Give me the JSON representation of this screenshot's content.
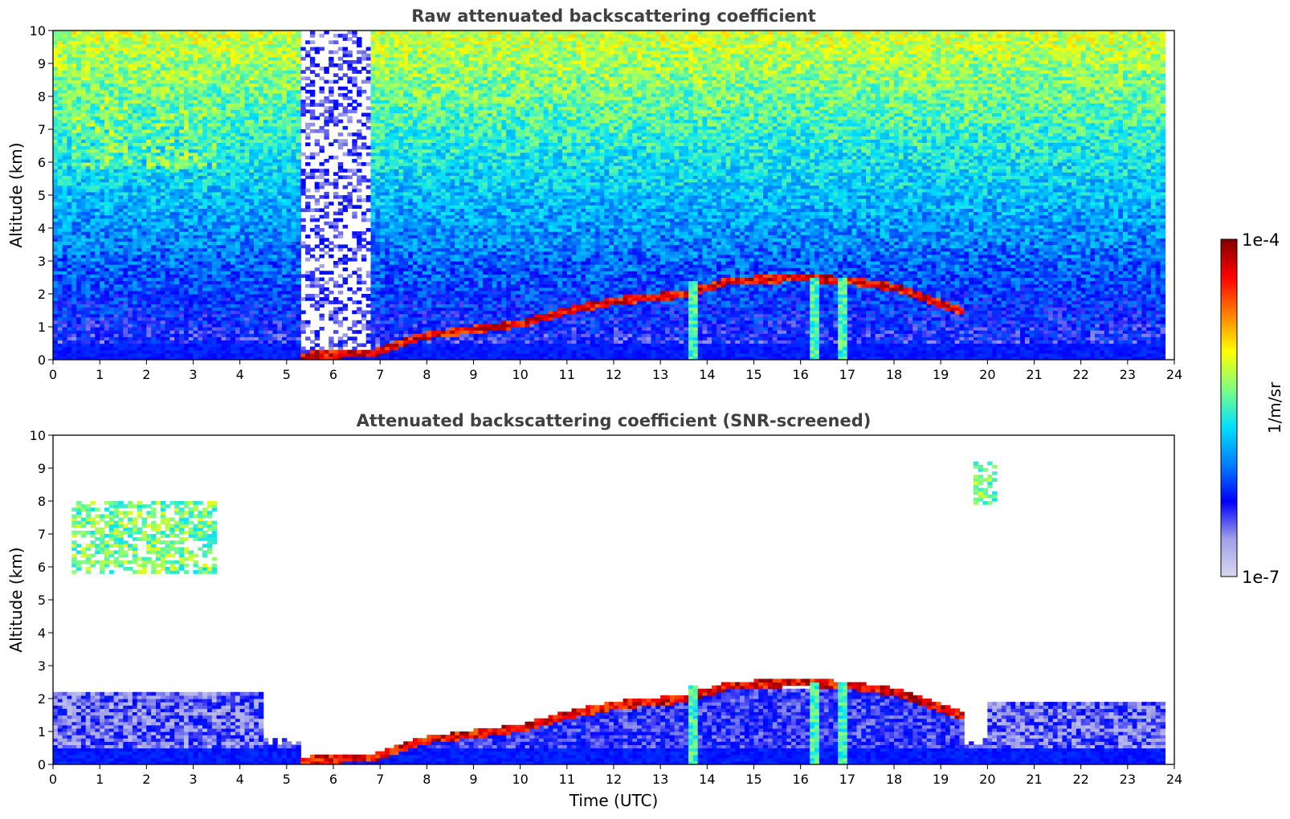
{
  "chart_data": [
    {
      "type": "heatmap",
      "id": "raw",
      "title": "Raw attenuated backscattering coefficient",
      "ylabel": "Altitude (km)",
      "xlabel": "",
      "xlim": [
        0,
        24
      ],
      "ylim": [
        0,
        10
      ],
      "x_ticks": [
        "0",
        "1",
        "2",
        "3",
        "4",
        "5",
        "6",
        "7",
        "8",
        "9",
        "10",
        "11",
        "12",
        "13",
        "14",
        "15",
        "16",
        "17",
        "18",
        "19",
        "20",
        "21",
        "22",
        "23",
        "24"
      ],
      "y_ticks": [
        "0",
        "1",
        "2",
        "3",
        "4",
        "5",
        "6",
        "7",
        "8",
        "9",
        "10"
      ],
      "data_end_time": 23.8,
      "features": [
        {
          "kind": "cirrus",
          "t0": 0.4,
          "t1": 3.5,
          "z0": 5.8,
          "z1": 8.0,
          "level": 0.55
        },
        {
          "kind": "cirrus",
          "t0": 19.7,
          "t1": 20.2,
          "z0": 7.9,
          "z1": 9.3,
          "level": 0.55
        },
        {
          "kind": "boundary_layer_top",
          "points": [
            [
              5.3,
              0.12
            ],
            [
              6.8,
              0.2
            ],
            [
              8,
              0.75
            ],
            [
              10,
              1.1
            ],
            [
              11,
              1.5
            ],
            [
              12,
              1.8
            ],
            [
              13.5,
              2.0
            ],
            [
              14.5,
              2.4
            ],
            [
              16,
              2.5
            ],
            [
              17,
              2.4
            ],
            [
              18,
              2.2
            ],
            [
              19.5,
              1.5
            ]
          ],
          "level": 0.95
        },
        {
          "kind": "precipitation_fall_streak",
          "t": 13.7,
          "z_top": 2.4,
          "level": 0.5
        },
        {
          "kind": "precipitation_fall_streak",
          "t": 16.3,
          "z_top": 2.5,
          "level": 0.5
        },
        {
          "kind": "precipitation_fall_streak",
          "t": 16.9,
          "z_top": 2.5,
          "level": 0.5
        },
        {
          "kind": "low_signal_gap",
          "t0": 5.3,
          "t1": 6.8
        }
      ]
    },
    {
      "type": "heatmap",
      "id": "snr",
      "title": "Attenuated backscattering coefficient (SNR-screened)",
      "ylabel": "Altitude (km)",
      "xlabel": "Time (UTC)",
      "xlim": [
        0,
        24
      ],
      "ylim": [
        0,
        10
      ],
      "x_ticks": [
        "0",
        "1",
        "2",
        "3",
        "4",
        "5",
        "6",
        "7",
        "8",
        "9",
        "10",
        "11",
        "12",
        "13",
        "14",
        "15",
        "16",
        "17",
        "18",
        "19",
        "20",
        "21",
        "22",
        "23",
        "24"
      ],
      "y_ticks": [
        "0",
        "1",
        "2",
        "3",
        "4",
        "5",
        "6",
        "7",
        "8",
        "9",
        "10"
      ],
      "data_end_time": 23.8,
      "features": [
        {
          "kind": "cirrus",
          "t0": 0.4,
          "t1": 3.5,
          "z0": 5.8,
          "z1": 8.0,
          "level": 0.55
        },
        {
          "kind": "cirrus",
          "t0": 19.7,
          "t1": 20.2,
          "z0": 7.9,
          "z1": 9.3,
          "level": 0.55
        },
        {
          "kind": "boundary_layer_top",
          "points": [
            [
              5.3,
              0.12
            ],
            [
              6.8,
              0.2
            ],
            [
              8,
              0.75
            ],
            [
              10,
              1.1
            ],
            [
              11,
              1.5
            ],
            [
              12,
              1.8
            ],
            [
              13.5,
              2.0
            ],
            [
              14.5,
              2.4
            ],
            [
              16,
              2.5
            ],
            [
              17,
              2.4
            ],
            [
              18,
              2.2
            ],
            [
              19.5,
              1.5
            ]
          ],
          "level": 0.95
        },
        {
          "kind": "precipitation_fall_streak",
          "t": 13.7,
          "z_top": 2.4,
          "level": 0.5
        },
        {
          "kind": "precipitation_fall_streak",
          "t": 16.3,
          "z_top": 2.5,
          "level": 0.5
        },
        {
          "kind": "precipitation_fall_streak",
          "t": 16.9,
          "z_top": 2.5,
          "level": 0.5
        }
      ]
    }
  ],
  "colorbar": {
    "label": "1/m/sr",
    "min_label": "1e-7",
    "max_label": "1e-4",
    "colormap": "jet",
    "colors": [
      "#d8d8f0",
      "#a0a0e8",
      "#0000ff",
      "#0080ff",
      "#00e0ff",
      "#80ff80",
      "#ffff00",
      "#ff8000",
      "#ff0000",
      "#800000"
    ]
  }
}
